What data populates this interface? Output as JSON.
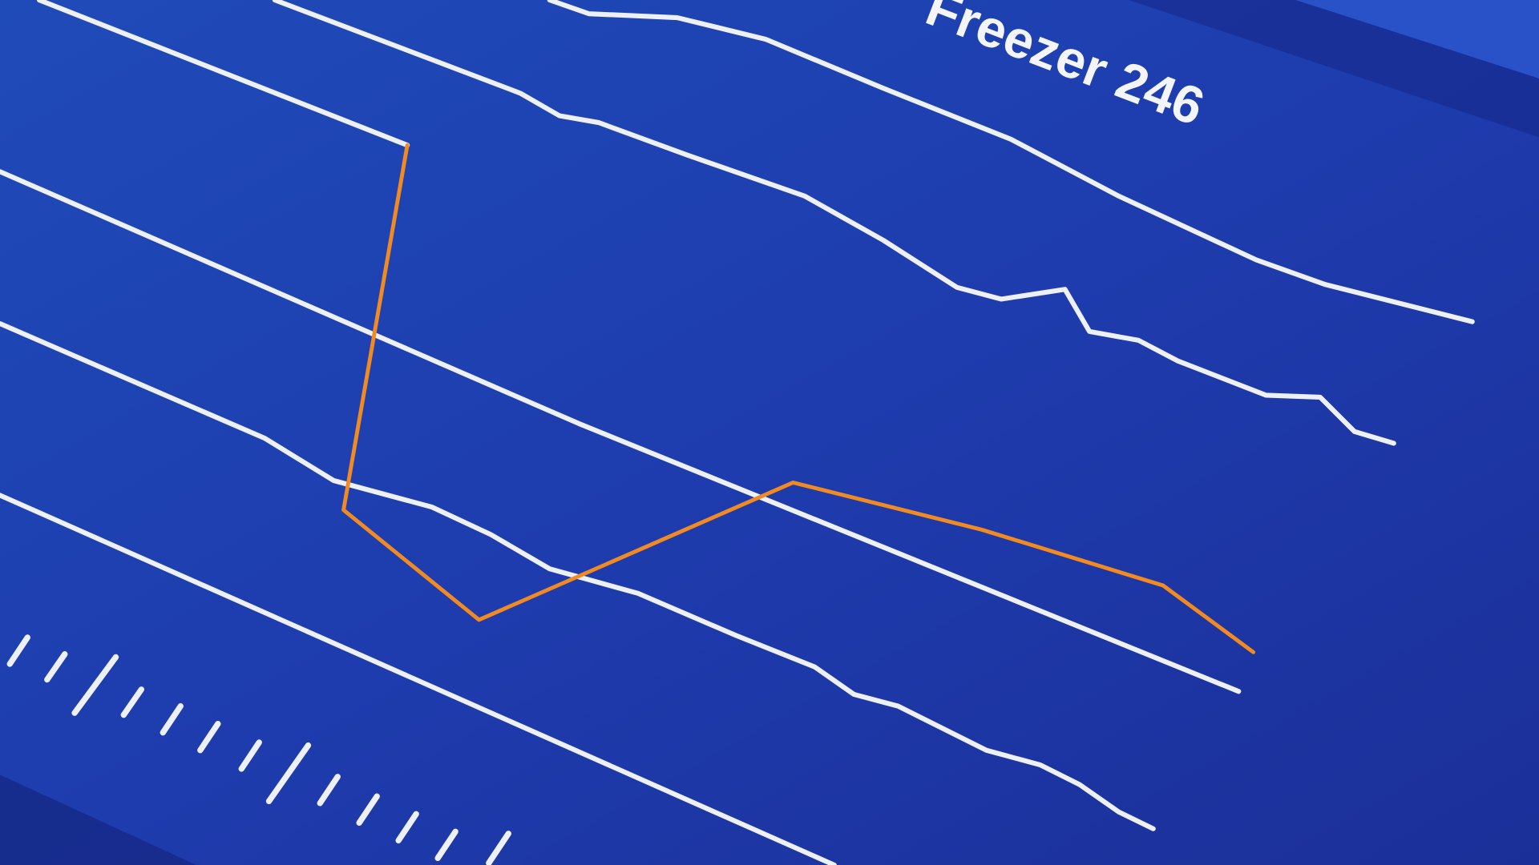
{
  "title": "Freezer 246"
}
